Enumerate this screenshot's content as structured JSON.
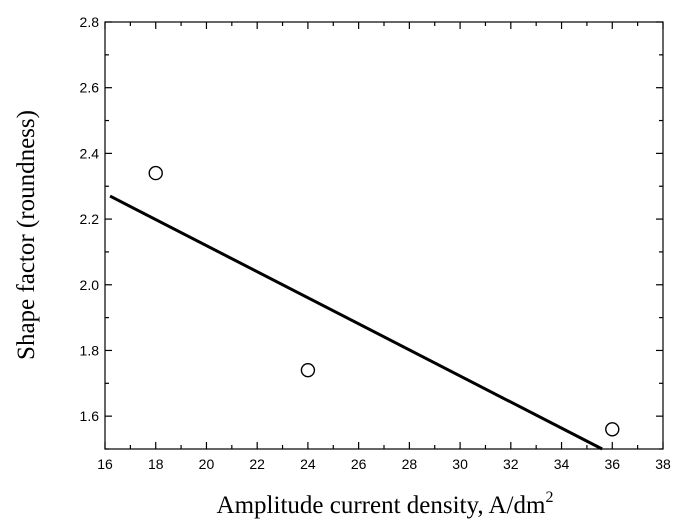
{
  "chart_data": {
    "type": "scatter",
    "title": "",
    "xlabel": "Amplitude current density, A/dm",
    "xlabel_superscript": "2",
    "ylabel": "Shape factor (roundness)",
    "xlim": [
      16,
      38
    ],
    "ylim": [
      1.5,
      2.8
    ],
    "x_ticks": [
      "16",
      "18",
      "20",
      "22",
      "24",
      "26",
      "28",
      "30",
      "32",
      "34",
      "36",
      "38"
    ],
    "y_ticks": [
      "1.6",
      "1.8",
      "2.0",
      "2.2",
      "2.4",
      "2.6",
      "2.8"
    ],
    "x_tick_values": [
      16,
      18,
      20,
      22,
      24,
      26,
      28,
      30,
      32,
      34,
      36,
      38
    ],
    "y_tick_values": [
      1.6,
      1.8,
      2.0,
      2.2,
      2.4,
      2.6,
      2.8
    ],
    "grid": false,
    "series": [
      {
        "type": "scatter",
        "marker": "open-circle",
        "x": [
          18,
          24,
          36
        ],
        "y": [
          2.34,
          1.74,
          1.56
        ]
      },
      {
        "type": "line",
        "x": [
          16.2,
          35.6
        ],
        "y": [
          2.27,
          1.5
        ]
      }
    ]
  }
}
